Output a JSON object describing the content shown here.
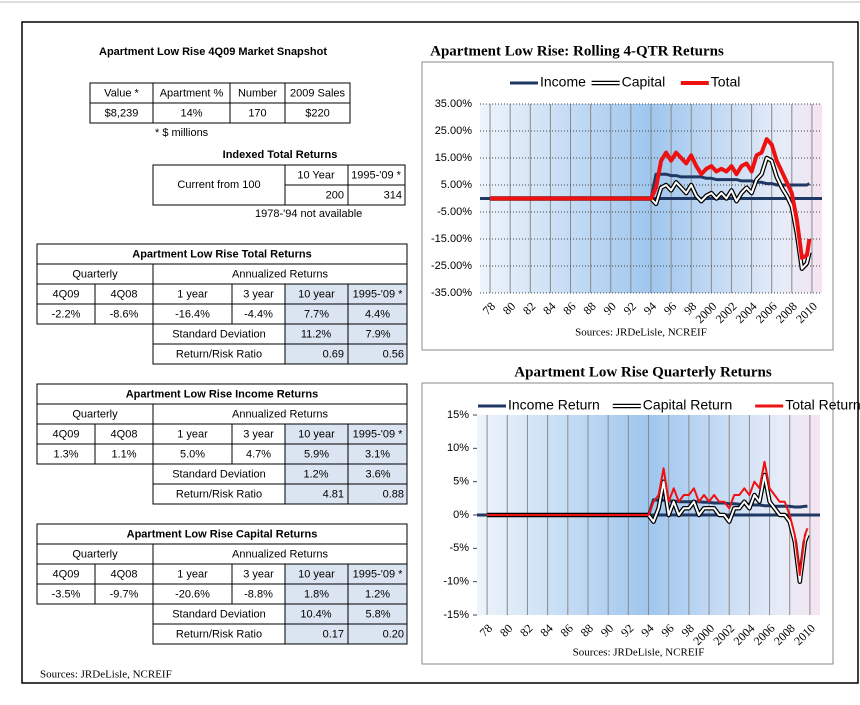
{
  "snapshot": {
    "title": "Apartment Low Rise 4Q09 Market Snapshot",
    "headers": [
      "Value *",
      "Apartment %",
      "Number",
      "2009 Sales"
    ],
    "values": [
      "$8,239",
      "14%",
      "170",
      "$220"
    ],
    "note": "* $ millions"
  },
  "indexed": {
    "title": "Indexed Total Returns",
    "row_label": "Current from 100",
    "headers": [
      "10 Year",
      "1995-'09 *"
    ],
    "values": [
      "200",
      "314"
    ],
    "note": "1978-'94 not available"
  },
  "return_tables": [
    {
      "title": "Apartment Low Rise Total Returns",
      "group_labels": [
        "Quarterly",
        "Annualized Returns"
      ],
      "headers": [
        "4Q09",
        "4Q08",
        "1 year",
        "3 year",
        "10 year",
        "1995-'09 *"
      ],
      "values": [
        "-2.2%",
        "-8.6%",
        "-16.4%",
        "-4.4%",
        "7.7%",
        "4.4%"
      ],
      "rows": [
        {
          "label": "Standard Deviation",
          "values": [
            "11.2%",
            "7.9%"
          ]
        },
        {
          "label": "Return/Risk Ratio",
          "values": [
            "0.69",
            "0.56"
          ]
        }
      ]
    },
    {
      "title": "Apartment Low Rise Income Returns",
      "group_labels": [
        "Quarterly",
        "Annualized Returns"
      ],
      "headers": [
        "4Q09",
        "4Q08",
        "1 year",
        "3 year",
        "10 year",
        "1995-'09 *"
      ],
      "values": [
        "1.3%",
        "1.1%",
        "5.0%",
        "4.7%",
        "5.9%",
        "3.1%"
      ],
      "rows": [
        {
          "label": "Standard Deviation",
          "values": [
            "1.2%",
            "3.6%"
          ]
        },
        {
          "label": "Return/Risk Ratio",
          "values": [
            "4.81",
            "0.88"
          ]
        }
      ]
    },
    {
      "title": "Apartment Low Rise Capital Returns",
      "group_labels": [
        "Quarterly",
        "Annualized Returns"
      ],
      "headers": [
        "4Q09",
        "4Q08",
        "1 year",
        "3 year",
        "10 year",
        "1995-'09 *"
      ],
      "values": [
        "-3.5%",
        "-9.7%",
        "-20.6%",
        "-8.8%",
        "1.8%",
        "1.2%"
      ],
      "rows": [
        {
          "label": "Standard Deviation",
          "values": [
            "10.4%",
            "5.8%"
          ]
        },
        {
          "label": "Return/Risk Ratio",
          "values": [
            "0.17",
            "0.20"
          ]
        }
      ]
    }
  ],
  "source": "Sources: JRDeLisle, NCREIF",
  "chart_data": [
    {
      "type": "line",
      "title": "Apartment Low Rise:  Rolling 4-QTR Returns",
      "source": "Sources: JRDeLisle, NCREIF",
      "grid": true,
      "x": [
        1978,
        1994,
        1994.5,
        1995,
        1995.5,
        1996,
        1996.5,
        1997,
        1997.5,
        1998,
        1998.5,
        1999,
        1999.5,
        2000,
        2000.5,
        2001,
        2001.5,
        2002,
        2002.5,
        2003,
        2003.5,
        2004,
        2004.5,
        2005,
        2005.5,
        2006,
        2006.5,
        2007,
        2007.5,
        2008,
        2008.5,
        2009,
        2009.5,
        2009.75
      ],
      "xlim": [
        1977,
        2011
      ],
      "xticks": [
        {
          "value": 1978,
          "label": "78"
        },
        {
          "value": 1980,
          "label": "80"
        },
        {
          "value": 1982,
          "label": "82"
        },
        {
          "value": 1984,
          "label": "84"
        },
        {
          "value": 1986,
          "label": "86"
        },
        {
          "value": 1988,
          "label": "88"
        },
        {
          "value": 1990,
          "label": "90"
        },
        {
          "value": 1992,
          "label": "92"
        },
        {
          "value": 1994,
          "label": "94"
        },
        {
          "value": 1996,
          "label": "96"
        },
        {
          "value": 1998,
          "label": "98"
        },
        2000,
        2002,
        2004,
        2006,
        2008,
        2010
      ],
      "ylim": [
        -35,
        35
      ],
      "yticks": [
        {
          "value": 35,
          "label": "35.00%"
        },
        {
          "value": 25,
          "label": "25.00%"
        },
        {
          "value": 15,
          "label": "15.00%"
        },
        {
          "value": 5,
          "label": "5.00%"
        },
        {
          "value": -5,
          "label": "-5.00%"
        },
        {
          "value": -15,
          "label": "-15.00%"
        },
        {
          "value": -25,
          "label": "-25.00%"
        },
        {
          "value": -35,
          "label": "-35.00%"
        }
      ],
      "series": [
        {
          "name": "Income",
          "color": "#1f3864",
          "values": [
            0,
            0,
            9,
            9,
            9,
            8.5,
            8.5,
            8,
            8,
            8,
            8,
            8,
            7.5,
            7.5,
            7,
            7,
            7,
            7,
            7,
            6.5,
            6.5,
            6.5,
            6,
            6,
            5.5,
            5.5,
            5,
            5,
            5,
            5,
            5,
            5,
            5,
            5.5
          ]
        },
        {
          "name": "Capital",
          "color": "#ffffff",
          "outline_color": "#000000",
          "values": [
            0,
            0,
            -2,
            4,
            5,
            3,
            6,
            4,
            2,
            5,
            1,
            -1,
            1,
            2,
            0,
            2,
            0,
            3,
            -1,
            2,
            4,
            2,
            7,
            9,
            15,
            14,
            8,
            4,
            1,
            -3,
            -13,
            -26,
            -24,
            -20
          ]
        },
        {
          "name": "Total",
          "color": "#ee1111",
          "values": [
            0,
            0,
            4,
            14,
            17,
            14,
            17,
            15,
            13,
            16,
            12,
            9,
            11,
            12,
            10,
            11,
            10,
            12,
            9,
            12,
            13,
            10,
            16,
            17,
            22,
            20,
            14,
            10,
            6,
            2,
            -8,
            -22,
            -21,
            -15
          ]
        }
      ]
    },
    {
      "type": "line",
      "title": "Apartment Low Rise Quarterly Returns",
      "source": "Sources: JRDeLisle, NCREIF",
      "grid": false,
      "x": [
        1978,
        1994,
        1994.5,
        1995,
        1995.5,
        1996,
        1996.5,
        1997,
        1997.5,
        1998,
        1998.5,
        1999,
        1999.5,
        2000,
        2000.5,
        2001,
        2001.5,
        2002,
        2002.5,
        2003,
        2003.5,
        2004,
        2004.5,
        2005,
        2005.5,
        2006,
        2006.5,
        2007,
        2007.5,
        2008,
        2008.5,
        2009,
        2009.5,
        2009.75
      ],
      "xlim": [
        1977,
        2011
      ],
      "xticks": [
        {
          "value": 1978,
          "label": "78"
        },
        {
          "value": 1980,
          "label": "80"
        },
        {
          "value": 1982,
          "label": "82"
        },
        {
          "value": 1984,
          "label": "84"
        },
        {
          "value": 1986,
          "label": "86"
        },
        {
          "value": 1988,
          "label": "88"
        },
        {
          "value": 1990,
          "label": "90"
        },
        {
          "value": 1992,
          "label": "92"
        },
        {
          "value": 1994,
          "label": "94"
        },
        {
          "value": 1996,
          "label": "96"
        },
        {
          "value": 1998,
          "label": "98"
        },
        2000,
        2002,
        2004,
        2006,
        2008,
        2010
      ],
      "ylim": [
        -15,
        15
      ],
      "yticks": [
        {
          "value": 15,
          "label": "15%"
        },
        {
          "value": 10,
          "label": "10%"
        },
        {
          "value": 5,
          "label": "5%"
        },
        {
          "value": 0,
          "label": "0%"
        },
        {
          "value": -5,
          "label": "-5%"
        },
        {
          "value": -10,
          "label": "-10%"
        },
        {
          "value": -15,
          "label": "-15%"
        }
      ],
      "series": [
        {
          "name": "Income Return",
          "color": "#1f3864",
          "values": [
            0,
            0,
            2.3,
            2.2,
            2.2,
            2.1,
            2.1,
            2,
            2,
            2,
            2,
            2,
            1.9,
            1.9,
            1.8,
            1.8,
            1.8,
            1.7,
            1.7,
            1.6,
            1.6,
            1.6,
            1.5,
            1.5,
            1.4,
            1.4,
            1.3,
            1.3,
            1.3,
            1.3,
            1.2,
            1.2,
            1.3,
            1.3
          ]
        },
        {
          "name": "Capital Return",
          "color": "#ffffff",
          "outline_color": "#000000",
          "values": [
            0,
            0,
            -1,
            1,
            5,
            0,
            2,
            0,
            1,
            1,
            2,
            0,
            1,
            1,
            1,
            0,
            0,
            -1,
            1,
            1,
            2,
            1,
            3,
            2,
            6,
            2,
            1,
            0,
            0,
            -1,
            -4,
            -10,
            -4,
            -3
          ]
        },
        {
          "name": "Total Return",
          "color": "#ee1111",
          "values": [
            0,
            0,
            2,
            3,
            7,
            2,
            4,
            2,
            3,
            3,
            4,
            2,
            3,
            2,
            3,
            2,
            2,
            1,
            3,
            3,
            4,
            3,
            5,
            4,
            8,
            4,
            3,
            2,
            2,
            0,
            -3,
            -9,
            -3,
            -2
          ]
        }
      ]
    }
  ]
}
